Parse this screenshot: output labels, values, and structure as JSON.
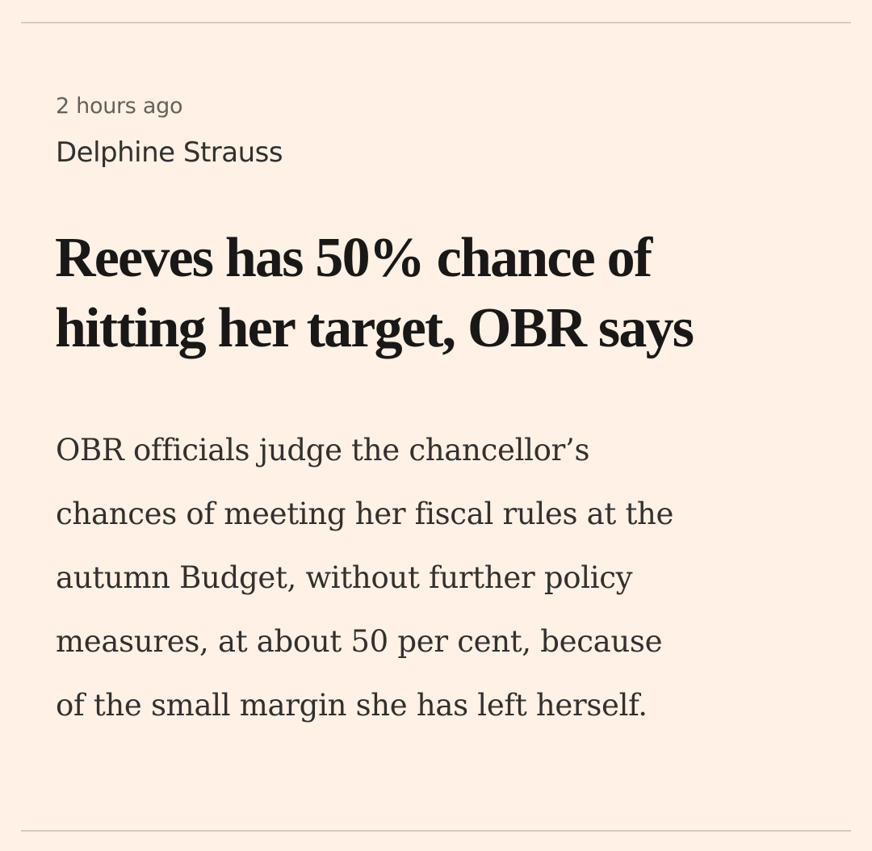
{
  "article": {
    "timestamp": "2 hours ago",
    "author": "Delphine Strauss",
    "headline_lines": [
      "Reeves has 50% chance of",
      "hitting her target, OBR says"
    ],
    "standfirst_lines": [
      "OBR officials judge the chancellor’s",
      "chances of meeting her fiscal rules at the",
      "autumn Budget, without further policy",
      "measures, at about 50 per cent, because",
      "of the small margin she has left herself."
    ]
  },
  "colors": {
    "background": "#fff1e5",
    "text": "#33302e",
    "divider": "#d4cbc3"
  }
}
